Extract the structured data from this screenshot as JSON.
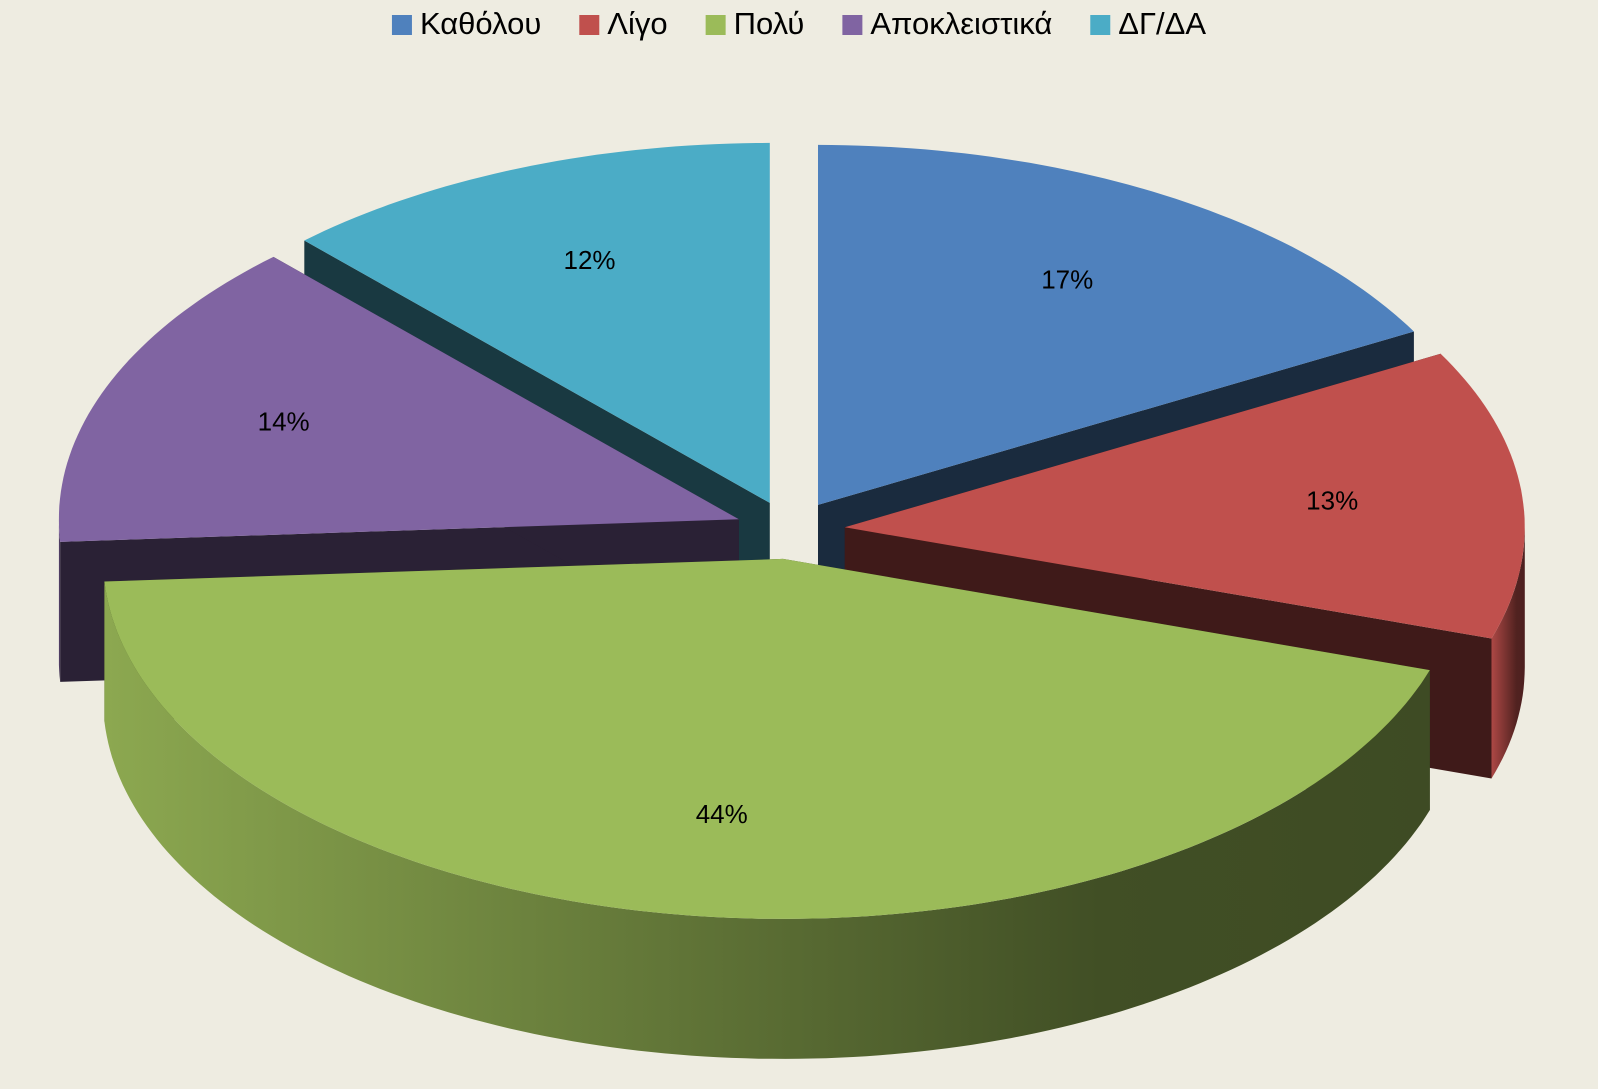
{
  "chart_data": {
    "type": "pie3d",
    "categories": [
      "Καθόλου",
      "Λίγο",
      "Πολύ",
      "Αποκλειστικά",
      "ΔΓ/ΔΑ"
    ],
    "values": [
      17,
      13,
      44,
      14,
      12
    ],
    "value_labels": [
      "17%",
      "13%",
      "44%",
      "14%",
      "12%"
    ],
    "colors": [
      "#4f81bd",
      "#c0504d",
      "#9bbb59",
      "#8064a2",
      "#4bacc6"
    ],
    "legend": "top"
  }
}
